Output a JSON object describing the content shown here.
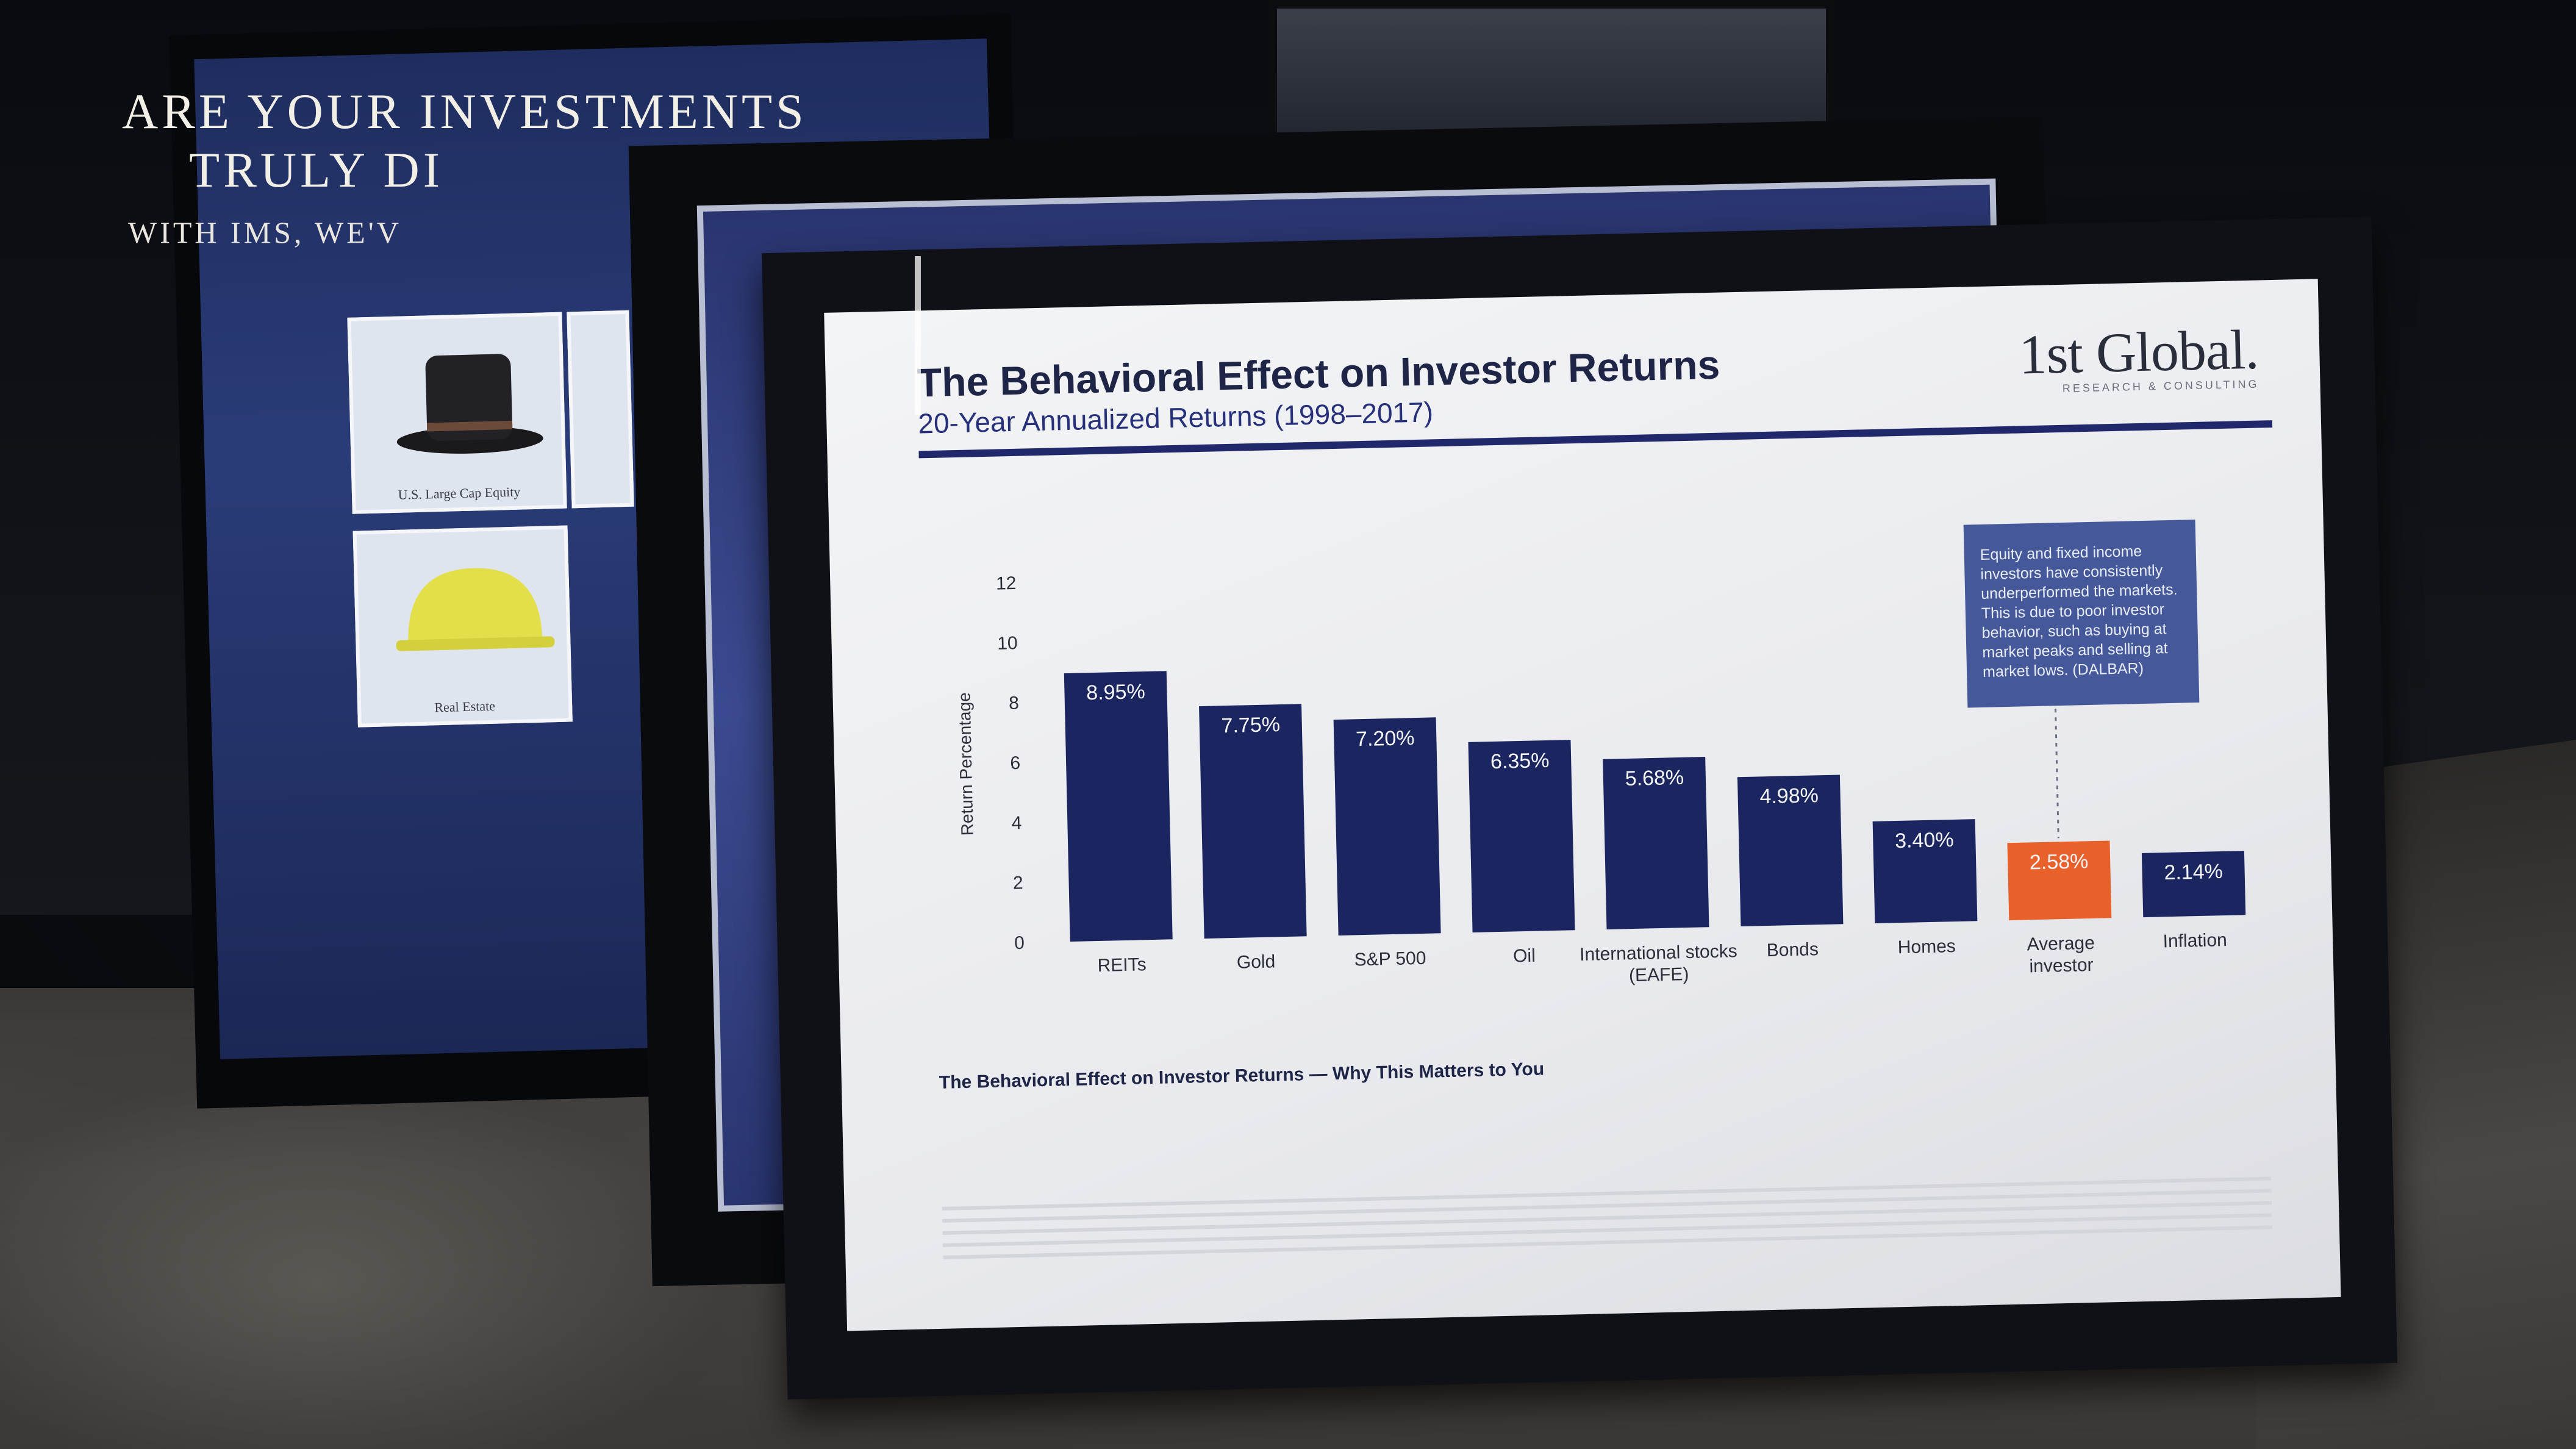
{
  "back_poster": {
    "headline_line1": "Are your investments",
    "headline_line2": "truly di",
    "subline": "with IMS, we'v",
    "tiles": [
      {
        "label": "U.S. Large Cap Equity",
        "icon": "top-hat-icon"
      },
      {
        "label": "Real Estate",
        "icon": "hard-hat-icon"
      }
    ]
  },
  "poster": {
    "title": "The Behavioral Effect on Investor Returns",
    "subtitle": "20-Year Annualized Returns (1998–2017)",
    "logo": "1st Global.",
    "logo_tagline": "RESEARCH & CONSULTING",
    "callout": "Equity and fixed income investors have consistently underperformed the markets. This is due to poor investor behavior, such as buying at market peaks and selling at market lows. (DALBAR)",
    "bottom_heading": "The Behavioral Effect on Investor Returns — Why This Matters to You",
    "colors": {
      "bar": "#1b2560",
      "highlight": "#e8602a",
      "rule": "#20276b"
    }
  },
  "chart_data": {
    "type": "bar",
    "ylabel": "Return Percentage",
    "ylim": [
      0,
      12
    ],
    "yticks": [
      0,
      2,
      4,
      6,
      8,
      10,
      12
    ],
    "categories": [
      "REITs",
      "Gold",
      "S&P 500",
      "Oil",
      "International stocks (EAFE)",
      "Bonds",
      "Homes",
      "Average investor",
      "Inflation"
    ],
    "values": [
      8.95,
      7.75,
      7.2,
      6.35,
      5.68,
      4.98,
      3.4,
      2.58,
      2.14
    ],
    "value_labels": [
      "8.95%",
      "7.75%",
      "7.20%",
      "6.35%",
      "5.68%",
      "4.98%",
      "3.40%",
      "2.58%",
      "2.14%"
    ],
    "highlight_index": 7,
    "grid": false,
    "legend": "none"
  }
}
